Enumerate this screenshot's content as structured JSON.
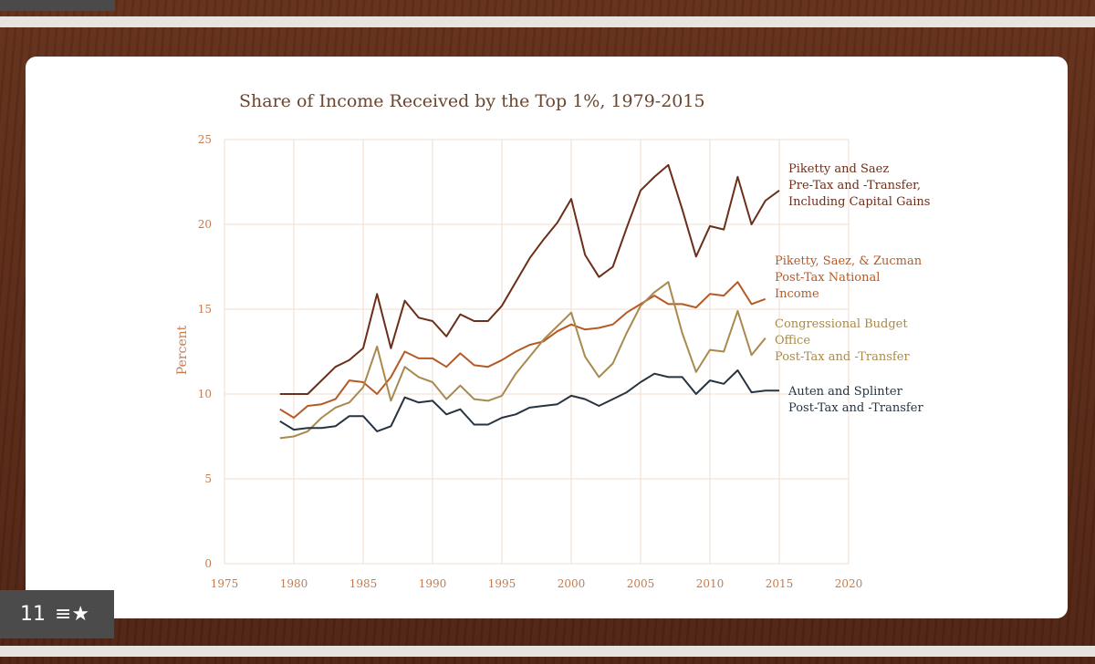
{
  "slide": {
    "number": "11",
    "star_icon": "menu-star-icon",
    "star_glyph": "≡★"
  },
  "colors": {
    "piketty_saez": "#6b2e1a",
    "psz": "#b55a26",
    "cbo": "#a88a4e",
    "auten": "#263340",
    "grid": "#f1ddd2",
    "tick": "#c97a4b"
  },
  "chart_data": {
    "type": "line",
    "title": "Share of Income Received by the Top 1%, 1979-2015",
    "ylabel": "Percent",
    "xlabel": "",
    "xlim": [
      1975,
      2020
    ],
    "ylim": [
      0,
      25
    ],
    "xticks": [
      1975,
      1980,
      1985,
      1990,
      1995,
      2000,
      2005,
      2010,
      2015,
      2020
    ],
    "yticks": [
      0,
      5,
      10,
      15,
      20,
      25
    ],
    "grid": true,
    "series": [
      {
        "name": "Piketty and Saez Pre-Tax and -Transfer, Including Capital Gains",
        "label_lines": [
          "Piketty and Saez",
          "Pre-Tax and -Transfer,",
          "Including Capital Gains"
        ],
        "x": [
          1979,
          1980,
          1981,
          1982,
          1983,
          1984,
          1985,
          1986,
          1987,
          1988,
          1989,
          1990,
          1991,
          1992,
          1993,
          1994,
          1995,
          1996,
          1997,
          1998,
          1999,
          2000,
          2001,
          2002,
          2003,
          2004,
          2005,
          2006,
          2007,
          2008,
          2009,
          2010,
          2011,
          2012,
          2013,
          2014,
          2015
        ],
        "values": [
          10.0,
          10.0,
          10.0,
          10.8,
          11.6,
          12.0,
          12.7,
          15.9,
          12.7,
          15.5,
          14.5,
          14.3,
          13.4,
          14.7,
          14.3,
          14.3,
          15.2,
          16.6,
          18.0,
          19.1,
          20.1,
          21.5,
          18.2,
          16.9,
          17.5,
          19.8,
          22.0,
          22.8,
          23.5,
          20.9,
          18.1,
          19.9,
          19.7,
          22.8,
          20.0,
          21.4,
          22.0
        ]
      },
      {
        "name": "Piketty, Saez, & Zucman Post-Tax National Income",
        "label_lines": [
          "Piketty, Saez, & Zucman",
          "Post-Tax National",
          "Income"
        ],
        "x": [
          1979,
          1980,
          1981,
          1982,
          1983,
          1984,
          1985,
          1986,
          1987,
          1988,
          1989,
          1990,
          1991,
          1992,
          1993,
          1994,
          1995,
          1996,
          1997,
          1998,
          1999,
          2000,
          2001,
          2002,
          2003,
          2004,
          2005,
          2006,
          2007,
          2008,
          2009,
          2010,
          2011,
          2012,
          2013,
          2014
        ],
        "values": [
          9.1,
          8.6,
          9.3,
          9.4,
          9.7,
          10.8,
          10.7,
          10.0,
          11.0,
          12.5,
          12.1,
          12.1,
          11.6,
          12.4,
          11.7,
          11.6,
          12.0,
          12.5,
          12.9,
          13.1,
          13.7,
          14.1,
          13.8,
          13.9,
          14.1,
          14.8,
          15.3,
          15.8,
          15.3,
          15.3,
          15.1,
          15.9,
          15.8,
          16.6,
          15.3,
          15.6
        ]
      },
      {
        "name": "Congressional Budget Office Post-Tax and -Transfer",
        "label_lines": [
          "Congressional Budget",
          "Office",
          "Post-Tax and -Transfer"
        ],
        "x": [
          1979,
          1980,
          1981,
          1982,
          1983,
          1984,
          1985,
          1986,
          1987,
          1988,
          1989,
          1990,
          1991,
          1992,
          1993,
          1994,
          1995,
          1996,
          1997,
          1998,
          1999,
          2000,
          2001,
          2002,
          2003,
          2004,
          2005,
          2006,
          2007,
          2008,
          2009,
          2010,
          2011,
          2012,
          2013,
          2014
        ],
        "values": [
          7.4,
          7.5,
          7.8,
          8.6,
          9.2,
          9.5,
          10.4,
          12.8,
          9.6,
          11.6,
          11.0,
          10.7,
          9.7,
          10.5,
          9.7,
          9.6,
          9.9,
          11.2,
          12.2,
          13.2,
          14.0,
          14.8,
          12.2,
          11.0,
          11.8,
          13.6,
          15.2,
          16.0,
          16.6,
          13.6,
          11.3,
          12.6,
          12.5,
          14.9,
          12.3,
          13.3
        ]
      },
      {
        "name": "Auten and Splinter Post-Tax and -Transfer",
        "label_lines": [
          "Auten and Splinter",
          "Post-Tax and -Transfer"
        ],
        "x": [
          1979,
          1980,
          1981,
          1982,
          1983,
          1984,
          1985,
          1986,
          1987,
          1988,
          1989,
          1990,
          1991,
          1992,
          1993,
          1994,
          1995,
          1996,
          1997,
          1998,
          1999,
          2000,
          2001,
          2002,
          2003,
          2004,
          2005,
          2006,
          2007,
          2008,
          2009,
          2010,
          2011,
          2012,
          2013,
          2014,
          2015
        ],
        "values": [
          8.4,
          7.9,
          8.0,
          8.0,
          8.1,
          8.7,
          8.7,
          7.8,
          8.1,
          9.8,
          9.5,
          9.6,
          8.8,
          9.1,
          8.2,
          8.2,
          8.6,
          8.8,
          9.2,
          9.3,
          9.4,
          9.9,
          9.7,
          9.3,
          9.7,
          10.1,
          10.7,
          11.2,
          11.0,
          11.0,
          10.0,
          10.8,
          10.6,
          11.4,
          10.1,
          10.2,
          10.2
        ]
      }
    ]
  }
}
